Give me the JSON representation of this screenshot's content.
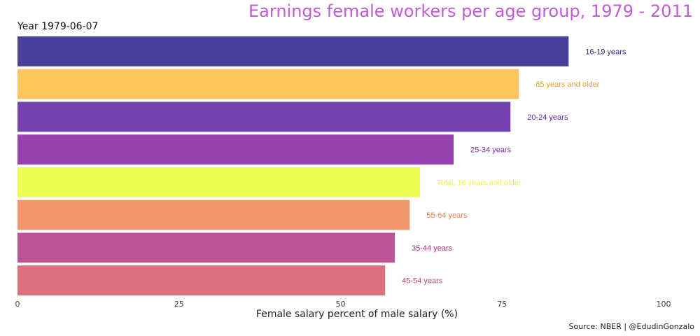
{
  "chart_data": {
    "type": "bar",
    "orientation": "horizontal",
    "title": "Earnings female workers per age group, 1979 - 2011",
    "subtitle": "Year 1979-06-07",
    "xlabel": "Female salary percent of male salary (%)",
    "ylabel": "",
    "xlim": [
      0,
      100
    ],
    "xticks": [
      0,
      25,
      50,
      75,
      100
    ],
    "grid": false,
    "legend": "none",
    "source": "Source: NBER | @EdudinGonzalo",
    "bars": [
      {
        "category": "16-19 years",
        "value": 85.3,
        "color": "#48409a",
        "label_color": "#2f2a86"
      },
      {
        "category": "65 years and older",
        "value": 77.6,
        "color": "#fcc45c",
        "label_color": "#f0a21c"
      },
      {
        "category": "20-24 years",
        "value": 76.3,
        "color": "#7441b0",
        "label_color": "#5b2aa1"
      },
      {
        "category": "25-34 years",
        "value": 67.5,
        "color": "#9842b1",
        "label_color": "#7d2aa0"
      },
      {
        "category": "Total, 16 years and older",
        "value": 62.3,
        "color": "#eefb52",
        "label_color": "#f3f23a"
      },
      {
        "category": "55-64 years",
        "value": 60.7,
        "color": "#f2976c",
        "label_color": "#ea7c4b"
      },
      {
        "category": "35-44 years",
        "value": 58.4,
        "color": "#bd5496",
        "label_color": "#a72e83"
      },
      {
        "category": "45-54 years",
        "value": 56.9,
        "color": "#dc707e",
        "label_color": "#d1485f"
      }
    ]
  }
}
